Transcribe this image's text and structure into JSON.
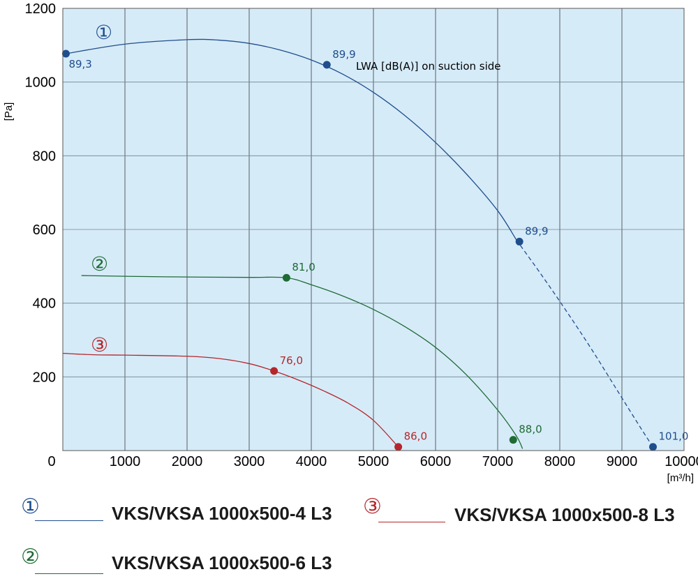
{
  "chart_data": {
    "type": "line",
    "ylabel": "[Pa]",
    "xlabel": "[m³/h]",
    "xlim": [
      0,
      10000
    ],
    "ylim": [
      0,
      1200
    ],
    "x_ticks": [
      "0",
      "1000",
      "2000",
      "3000",
      "4000",
      "5000",
      "6000",
      "7000",
      "8000",
      "9000",
      "10000"
    ],
    "y_ticks": [
      "1200",
      "1000",
      "800",
      "600",
      "400",
      "200"
    ],
    "grid": true,
    "annotation": "LWA [dB(A)] on suction side",
    "series": [
      {
        "name": "VKS/VKSA 1000x500-4 L3",
        "marker": "①",
        "color": "#1f4e8c",
        "curve": [
          [
            50,
            1077
          ],
          [
            1000,
            1103
          ],
          [
            2000,
            1115
          ],
          [
            2500,
            1114
          ],
          [
            3000,
            1105
          ],
          [
            3500,
            1087
          ],
          [
            4000,
            1060
          ],
          [
            4500,
            1022
          ],
          [
            5000,
            972
          ],
          [
            5500,
            910
          ],
          [
            6000,
            836
          ],
          [
            6500,
            750
          ],
          [
            7000,
            651
          ],
          [
            7300,
            572
          ]
        ],
        "curve_dashed": [
          [
            7300,
            572
          ],
          [
            7700,
            478
          ],
          [
            8100,
            380
          ],
          [
            8500,
            278
          ],
          [
            8900,
            170
          ],
          [
            9300,
            62
          ],
          [
            9500,
            10
          ]
        ],
        "points": [
          {
            "x": 50,
            "y": 1077,
            "label": "89,3"
          },
          {
            "x": 4250,
            "y": 1047,
            "label": "89,9"
          },
          {
            "x": 7350,
            "y": 567,
            "label": "89,9"
          },
          {
            "x": 9500,
            "y": 10,
            "label": "101,0"
          }
        ]
      },
      {
        "name": "VKS/VKSA 1000x500-6 L3",
        "marker": "②",
        "color": "#1e6b34",
        "curve": [
          [
            300,
            475
          ],
          [
            1000,
            473
          ],
          [
            2000,
            471
          ],
          [
            3000,
            470
          ],
          [
            3600,
            469
          ],
          [
            4000,
            450
          ],
          [
            4500,
            420
          ],
          [
            5000,
            383
          ],
          [
            5500,
            337
          ],
          [
            6000,
            280
          ],
          [
            6500,
            205
          ],
          [
            7000,
            110
          ],
          [
            7300,
            40
          ],
          [
            7400,
            5
          ]
        ],
        "points": [
          {
            "x": 3600,
            "y": 469,
            "label": "81,0"
          },
          {
            "x": 7250,
            "y": 29,
            "label": "88,0"
          }
        ]
      },
      {
        "name": "VKS/VKSA 1000x500-8 L3",
        "marker": "③",
        "color": "#b5262b",
        "curve": [
          [
            0,
            264
          ],
          [
            500,
            260
          ],
          [
            1000,
            259
          ],
          [
            2000,
            256
          ],
          [
            2500,
            250
          ],
          [
            3000,
            236
          ],
          [
            3400,
            216
          ],
          [
            3800,
            191
          ],
          [
            4200,
            162
          ],
          [
            4600,
            128
          ],
          [
            5000,
            82
          ],
          [
            5400,
            10
          ]
        ],
        "points": [
          {
            "x": 3400,
            "y": 216,
            "label": "76,0"
          },
          {
            "x": 5400,
            "y": 10,
            "label": "86,0"
          }
        ]
      }
    ]
  },
  "legend": [
    {
      "marker": "①",
      "label": "VKS/VKSA 1000x500-4 L3",
      "color": "#1f4e8c"
    },
    {
      "marker": "③",
      "label": "VKS/VKSA 1000x500-8 L3",
      "color": "#b5262b"
    },
    {
      "marker": "②",
      "label": "VKS/VKSA 1000x500-6 L3",
      "color": "#1e6b34"
    }
  ]
}
